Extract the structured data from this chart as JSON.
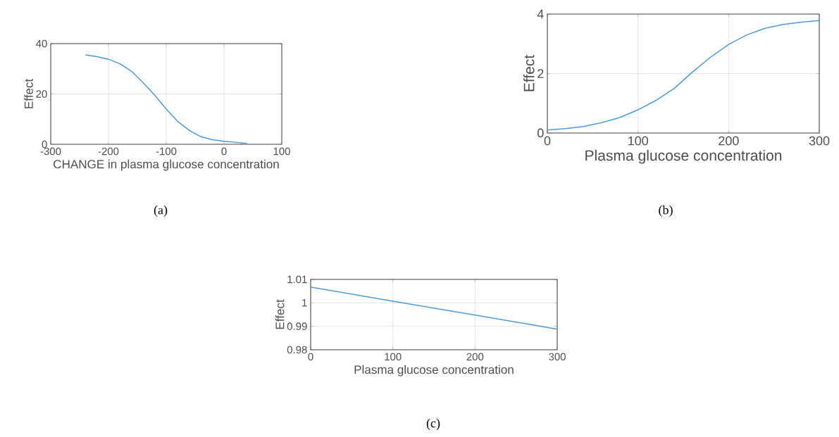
{
  "chart_data": [
    {
      "type": "line",
      "xlabel": "CHANGE in plasma glucose concentration",
      "ylabel": "Effect",
      "annotations": [
        "(a)"
      ],
      "color": "#4a9bdc",
      "grid": true,
      "xlim": [
        -300,
        100
      ],
      "ylim": [
        0,
        40
      ],
      "xticks": [
        -300,
        -200,
        -100,
        0,
        100
      ],
      "yticks": [
        0,
        20,
        40
      ],
      "x": [
        -240,
        -220,
        -200,
        -180,
        -160,
        -140,
        -120,
        -100,
        -80,
        -60,
        -40,
        -20,
        0,
        20,
        40
      ],
      "values": [
        35.5,
        34.8,
        33.8,
        32,
        29,
        24.5,
        19.5,
        14,
        9,
        5.5,
        3,
        1.8,
        1.2,
        0.8,
        0.3
      ]
    },
    {
      "type": "line",
      "xlabel": "Plasma glucose concentration",
      "ylabel": "Effect",
      "annotations": [
        "(b)"
      ],
      "color": "#4a9bdc",
      "grid": true,
      "xlim": [
        0,
        300
      ],
      "ylim": [
        0,
        4
      ],
      "xticks": [
        0,
        100,
        200,
        300
      ],
      "yticks": [
        0,
        2,
        4
      ],
      "x": [
        0,
        20,
        40,
        60,
        80,
        100,
        120,
        140,
        160,
        180,
        200,
        220,
        240,
        260,
        280,
        300
      ],
      "values": [
        0.1,
        0.15,
        0.22,
        0.35,
        0.52,
        0.78,
        1.1,
        1.5,
        2.05,
        2.55,
        2.98,
        3.3,
        3.52,
        3.65,
        3.73,
        3.78
      ]
    },
    {
      "type": "line",
      "xlabel": "Plasma glucose concentration",
      "ylabel": "Effect",
      "annotations": [
        "(c)"
      ],
      "color": "#4a9bdc",
      "grid": true,
      "xlim": [
        0,
        300
      ],
      "ylim": [
        0.98,
        1.01
      ],
      "xticks": [
        0,
        100,
        200,
        300
      ],
      "yticks": [
        0.98,
        0.99,
        1,
        1.01
      ],
      "x": [
        0,
        100,
        200,
        300
      ],
      "values": [
        1.0067,
        1.0007,
        0.9948,
        0.9888
      ]
    }
  ]
}
